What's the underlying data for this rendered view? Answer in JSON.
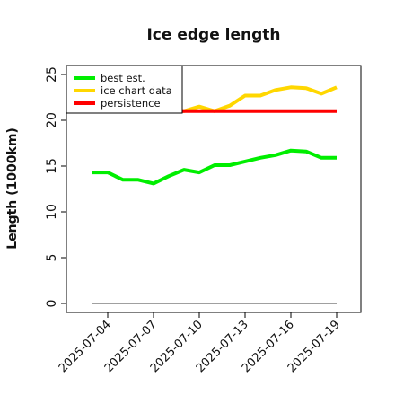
{
  "chart_data": {
    "type": "line",
    "title": "Ice edge length",
    "xlabel": "",
    "ylabel": "Length (1000km)",
    "ylim": [
      -1,
      26
    ],
    "yticks": [
      0,
      5,
      10,
      15,
      20,
      25
    ],
    "x": [
      "2025-07-03",
      "2025-07-04",
      "2025-07-05",
      "2025-07-06",
      "2025-07-07",
      "2025-07-08",
      "2025-07-09",
      "2025-07-10",
      "2025-07-11",
      "2025-07-12",
      "2025-07-13",
      "2025-07-14",
      "2025-07-15",
      "2025-07-16",
      "2025-07-17",
      "2025-07-18",
      "2025-07-19"
    ],
    "xticks": [
      "2025-07-04",
      "2025-07-07",
      "2025-07-10",
      "2025-07-13",
      "2025-07-16",
      "2025-07-19"
    ],
    "grid": false,
    "legend_position": "top-left",
    "series": [
      {
        "name": "best est.",
        "color": "#00ee00",
        "values": [
          14.3,
          14.3,
          13.5,
          13.5,
          13.1,
          13.9,
          14.6,
          14.3,
          15.1,
          15.1,
          15.5,
          15.9,
          16.2,
          16.7,
          16.6,
          15.9,
          15.9
        ]
      },
      {
        "name": "ice chart data",
        "color": "#ffd700",
        "values": [
          null,
          null,
          null,
          null,
          null,
          21.0,
          21.0,
          21.5,
          21.0,
          21.6,
          22.7,
          22.7,
          23.3,
          23.6,
          23.5,
          22.9,
          23.6
        ]
      },
      {
        "name": "persistence",
        "color": "#ff0000",
        "values": [
          null,
          null,
          null,
          null,
          null,
          21.0,
          21.0,
          21.0,
          21.0,
          21.0,
          21.0,
          21.0,
          21.0,
          21.0,
          21.0,
          21.0,
          21.0
        ]
      },
      {
        "name": "",
        "color": "#808080",
        "values": [
          0,
          0,
          0,
          0,
          0,
          0,
          0,
          0,
          0,
          0,
          0,
          0,
          0,
          0,
          0,
          0,
          0
        ]
      }
    ]
  }
}
